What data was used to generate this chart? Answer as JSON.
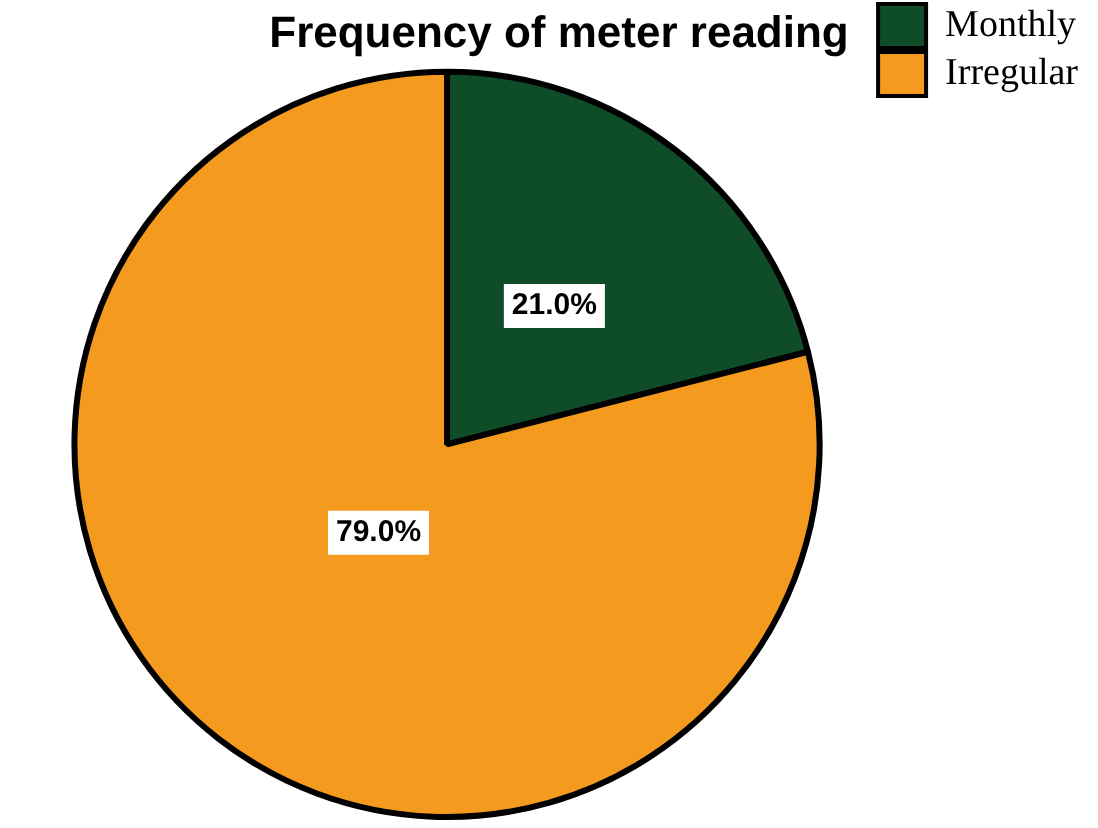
{
  "chart_data": {
    "type": "pie",
    "title": "Frequency of meter reading",
    "categories": [
      "Monthly",
      "Irregular"
    ],
    "values": [
      21.0,
      79.0
    ],
    "colors": [
      "#0e4d27",
      "#f39a1f"
    ],
    "value_labels": [
      "21.0%",
      "79.0%"
    ],
    "legend": "top right"
  }
}
